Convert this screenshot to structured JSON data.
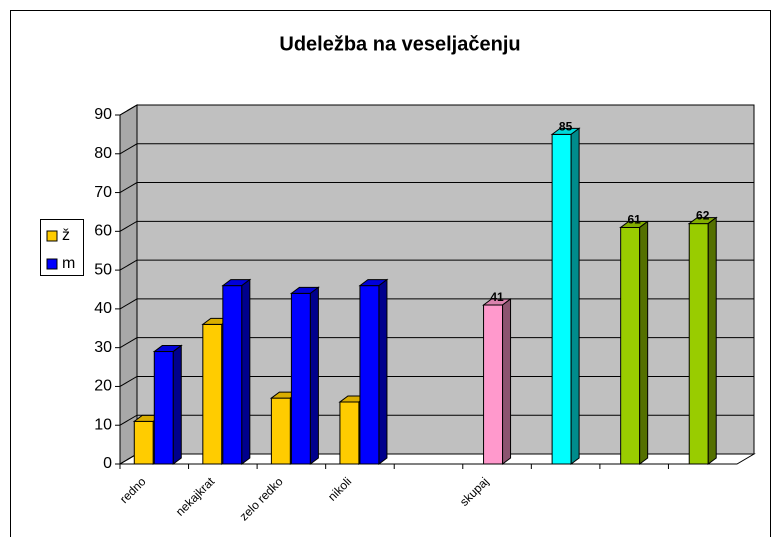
{
  "chart_data": {
    "type": "bar3d",
    "title": "Udeležba na veseljačenju",
    "categories": [
      "redno",
      "nekajkrat",
      "zelo redko",
      "nikoli",
      null,
      "skupaj",
      null,
      null,
      null
    ],
    "series": [
      {
        "name": "ž",
        "color": "#FFCC00",
        "values": [
          11,
          36,
          17,
          16,
          null,
          null,
          null,
          null,
          null
        ]
      },
      {
        "name": "m",
        "color": "#0000FF",
        "values": [
          29,
          46,
          44,
          46,
          null,
          null,
          null,
          null,
          null
        ]
      },
      {
        "colors": [
          null,
          null,
          null,
          null,
          null,
          "#FF99CC",
          "#00FFFF",
          "#99CC00",
          "#99CC00"
        ],
        "values": [
          null,
          null,
          null,
          null,
          null,
          41,
          85,
          61,
          62
        ],
        "data_labels": true
      }
    ],
    "ylim": [
      0,
      90
    ],
    "yticks": [
      0,
      10,
      20,
      30,
      40,
      50,
      60,
      70,
      80,
      90
    ],
    "grid": true,
    "legend": "left"
  }
}
